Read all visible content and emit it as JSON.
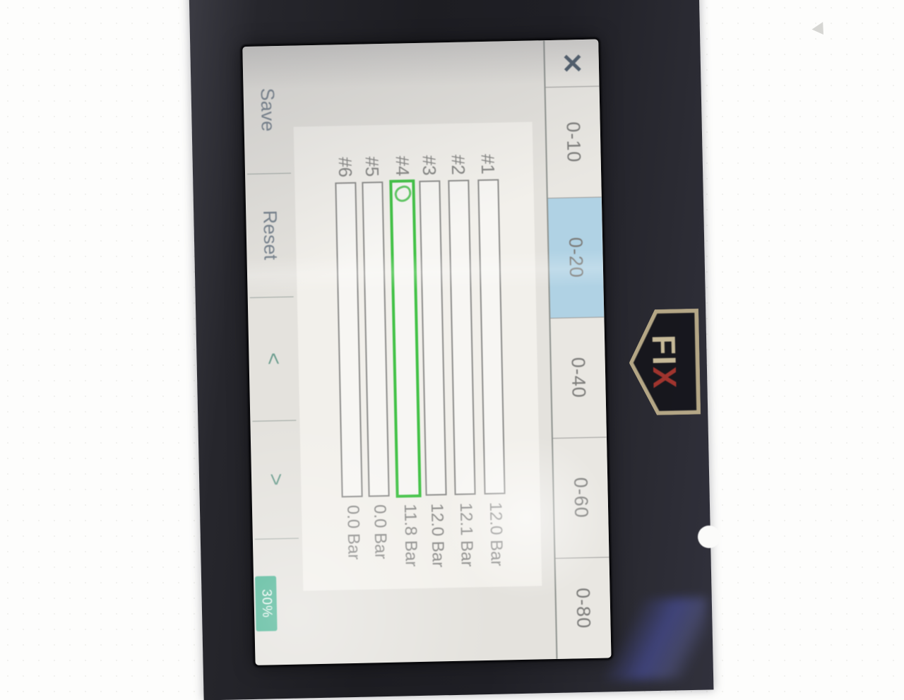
{
  "device": {
    "logo_fi": "FI",
    "logo_x": "X"
  },
  "screen": {
    "topbar": {
      "close_icon": "✕",
      "ranges": [
        {
          "label": "0-10",
          "selected": false
        },
        {
          "label": "0-20",
          "selected": true
        },
        {
          "label": "0-40",
          "selected": false
        },
        {
          "label": "0-60",
          "selected": false
        },
        {
          "label": "0-80",
          "selected": false
        }
      ]
    },
    "rows": [
      {
        "label": "#1",
        "value": 12.0,
        "value_label": "12.0 Bar",
        "selected": false
      },
      {
        "label": "#2",
        "value": 12.1,
        "value_label": "12.1 Bar",
        "selected": false
      },
      {
        "label": "#3",
        "value": 12.0,
        "value_label": "12.0 Bar",
        "selected": false
      },
      {
        "label": "#4",
        "value": 11.8,
        "value_label": "11.8 Bar",
        "selected": true
      },
      {
        "label": "#5",
        "value": 0.0,
        "value_label": "0.0 Bar",
        "selected": false
      },
      {
        "label": "#6",
        "value": 0.0,
        "value_label": "0.0 Bar",
        "selected": false
      }
    ],
    "toolbar": {
      "save": "Save",
      "reset": "Reset",
      "prev": "<",
      "next": ">",
      "progress": "30%"
    }
  },
  "chart_data": {
    "type": "bar",
    "orientation": "horizontal",
    "categories": [
      "#1",
      "#2",
      "#3",
      "#4",
      "#5",
      "#6"
    ],
    "values": [
      12.0,
      12.1,
      12.0,
      11.8,
      0.0,
      0.0
    ],
    "unit": "Bar",
    "data_labels": [
      "12.0 Bar",
      "12.1 Bar",
      "12.0 Bar",
      "11.8 Bar",
      "0.0 Bar",
      "0.0 Bar"
    ],
    "xlim": [
      0,
      20
    ],
    "selected_range": "0-20",
    "selected_bar": "#4",
    "range_options": [
      "0-10",
      "0-20",
      "0-40",
      "0-60",
      "0-80"
    ]
  },
  "colors": {
    "bar_fill": "#3e8ed9",
    "selected_range_bg": "#b0d2e4",
    "selected_bar_border": "#42c246",
    "badge_bg": "#47b291",
    "logo_red": "#b5372e",
    "logo_cream": "#e2d3ab"
  }
}
